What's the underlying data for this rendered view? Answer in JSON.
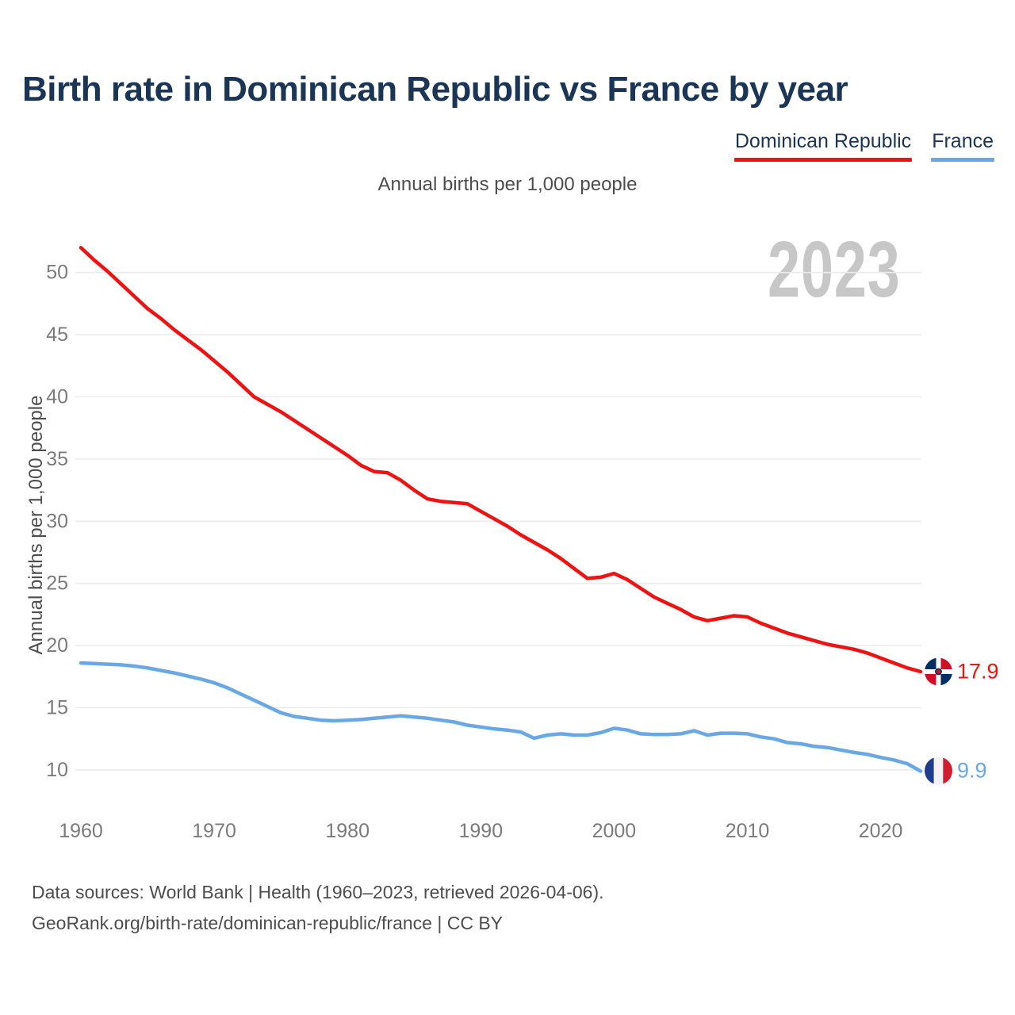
{
  "header": {
    "title": "Birth rate in Dominican Republic vs France by year"
  },
  "legend": {
    "items": [
      {
        "label": "Dominican Republic",
        "color": "#ee1212"
      },
      {
        "label": "France",
        "color": "#69a8e5"
      }
    ]
  },
  "subtitle": "Annual births per 1,000 people",
  "watermark": "2023",
  "chart_data": {
    "type": "line",
    "title": "Birth rate in Dominican Republic vs France by year",
    "xlabel": "",
    "ylabel": "Annual births per 1,000 people",
    "x_ticks": [
      1960,
      1970,
      1980,
      1990,
      2000,
      2010,
      2020
    ],
    "y_ticks": [
      10,
      15,
      20,
      25,
      30,
      35,
      40,
      45,
      50
    ],
    "ylim": [
      8.5,
      53
    ],
    "xlim": [
      1960,
      2023
    ],
    "grid": "horizontal",
    "legend_position": "top-right",
    "x": [
      1960,
      1961,
      1962,
      1963,
      1964,
      1965,
      1966,
      1967,
      1968,
      1969,
      1970,
      1971,
      1972,
      1973,
      1974,
      1975,
      1976,
      1977,
      1978,
      1979,
      1980,
      1981,
      1982,
      1983,
      1984,
      1985,
      1986,
      1987,
      1988,
      1989,
      1990,
      1991,
      1992,
      1993,
      1994,
      1995,
      1996,
      1997,
      1998,
      1999,
      2000,
      2001,
      2002,
      2003,
      2004,
      2005,
      2006,
      2007,
      2008,
      2009,
      2010,
      2011,
      2012,
      2013,
      2014,
      2015,
      2016,
      2017,
      2018,
      2019,
      2020,
      2021,
      2022,
      2023
    ],
    "series": [
      {
        "name": "Dominican Republic",
        "color": "#ee1212",
        "end_label": "17.9",
        "flag": "dominican-republic",
        "values": [
          52.0,
          51.0,
          50.1,
          49.1,
          48.1,
          47.1,
          46.3,
          45.4,
          44.6,
          43.8,
          42.9,
          42.0,
          41.0,
          40.0,
          39.4,
          38.8,
          38.1,
          37.4,
          36.7,
          36.0,
          35.3,
          34.5,
          34.0,
          33.9,
          33.3,
          32.5,
          31.8,
          31.6,
          31.5,
          31.4,
          30.8,
          30.2,
          29.6,
          28.9,
          28.3,
          27.7,
          27.0,
          26.2,
          25.4,
          25.5,
          25.8,
          25.3,
          24.6,
          23.9,
          23.4,
          22.9,
          22.3,
          22.0,
          22.2,
          22.4,
          22.3,
          21.8,
          21.4,
          21.0,
          20.7,
          20.4,
          20.1,
          19.9,
          19.7,
          19.4,
          19.0,
          18.6,
          18.2,
          17.9
        ]
      },
      {
        "name": "France",
        "color": "#69a8e5",
        "end_label": "9.9",
        "flag": "france",
        "values": [
          18.6,
          18.55,
          18.5,
          18.45,
          18.35,
          18.2,
          18.0,
          17.8,
          17.55,
          17.3,
          17.0,
          16.6,
          16.1,
          15.6,
          15.1,
          14.6,
          14.3,
          14.15,
          14.0,
          13.95,
          14.0,
          14.05,
          14.15,
          14.25,
          14.35,
          14.25,
          14.15,
          14.0,
          13.85,
          13.6,
          13.45,
          13.3,
          13.2,
          13.05,
          12.55,
          12.8,
          12.9,
          12.8,
          12.8,
          13.0,
          13.35,
          13.2,
          12.9,
          12.85,
          12.85,
          12.9,
          13.15,
          12.8,
          12.95,
          12.95,
          12.9,
          12.65,
          12.5,
          12.2,
          12.1,
          11.9,
          11.8,
          11.6,
          11.4,
          11.25,
          11.0,
          10.8,
          10.5,
          9.9
        ]
      }
    ]
  },
  "footer": {
    "line1": "Data sources: World Bank | Health (1960–2023, retrieved 2026-04-06).",
    "line2": "GeoRank.org/birth-rate/dominican-republic/france | CC BY"
  },
  "colors": {
    "title": "#1a3556",
    "axis_text": "#7b7b7b",
    "muted_text": "#4d4d4d",
    "gridline": "#ebebeb",
    "watermark": "#c7c7c7",
    "dr_flag_blue": "#002d62",
    "dr_flag_red": "#ce1126",
    "fr_flag_blue": "#1e3d8f",
    "fr_flag_white": "#f2f2f4",
    "fr_flag_red": "#cf1f2e"
  }
}
